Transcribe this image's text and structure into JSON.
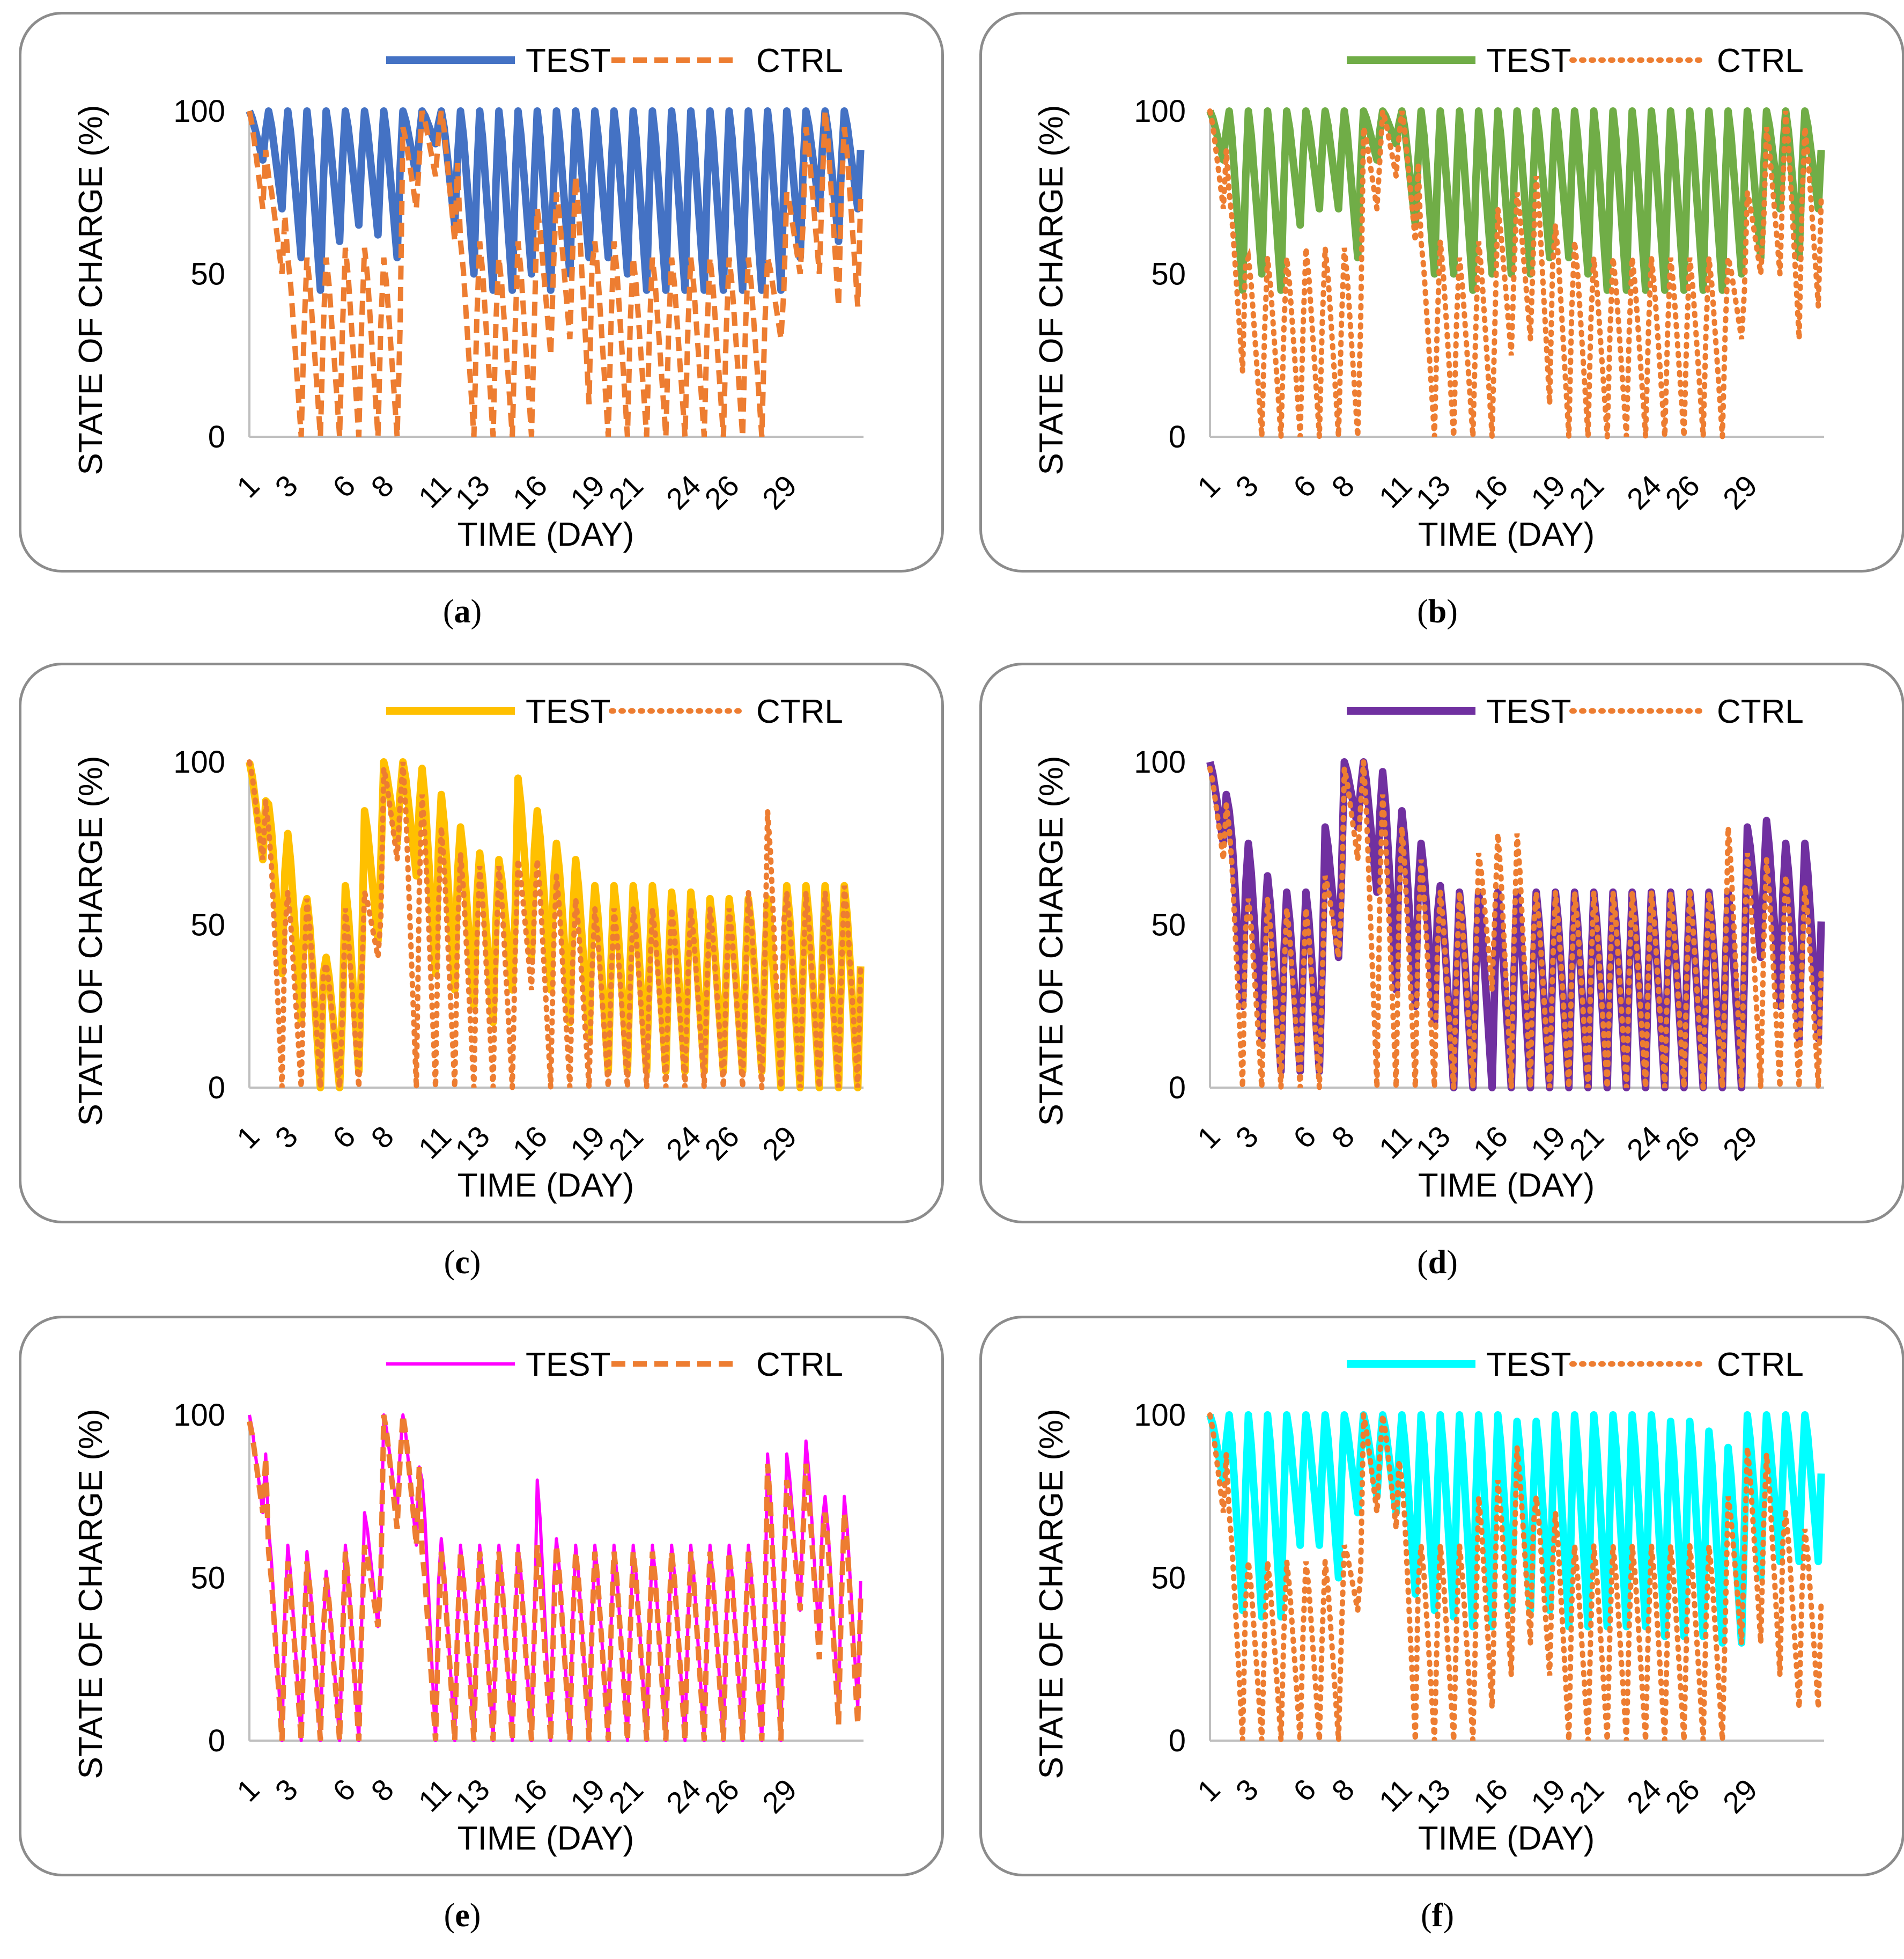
{
  "panels": [
    {
      "id": "a",
      "caption": "a",
      "test_color": "#4472C4",
      "ctrl_color": "#ED7D31",
      "ctrl_style": "dashed",
      "test_width": 14,
      "test_style": "solid"
    },
    {
      "id": "b",
      "caption": "b",
      "test_color": "#70AD47",
      "ctrl_color": "#ED7D31",
      "ctrl_style": "dotted",
      "test_width": 14,
      "test_style": "solid"
    },
    {
      "id": "c",
      "caption": "c",
      "test_color": "#FFC000",
      "ctrl_color": "#ED7D31",
      "ctrl_style": "dotted",
      "test_width": 14,
      "test_style": "solid"
    },
    {
      "id": "d",
      "caption": "d",
      "test_color": "#7030A0",
      "ctrl_color": "#ED7D31",
      "ctrl_style": "dotted",
      "test_width": 14,
      "test_style": "solid"
    },
    {
      "id": "e",
      "caption": "e",
      "test_color": "#FF00FF",
      "ctrl_color": "#ED7D31",
      "ctrl_style": "dashed",
      "test_width": 6,
      "test_style": "solid"
    },
    {
      "id": "f",
      "caption": "f",
      "test_color": "#00FFFF",
      "ctrl_color": "#ED7D31",
      "ctrl_style": "dotted",
      "test_width": 14,
      "test_style": "solid"
    }
  ],
  "chart_data": [
    {
      "panel": "a",
      "type": "line",
      "xlabel": "TIME (DAY)",
      "ylabel": "STATE OF CHARGE (%)",
      "ylim": [
        0,
        100
      ],
      "yticks": [
        0,
        50,
        100
      ],
      "xticks": [
        "1",
        "3",
        "6",
        "8",
        "11",
        "13",
        "16",
        "19",
        "21",
        "24",
        "26",
        "29"
      ],
      "series": [
        {
          "name": "TEST",
          "daily_max": [
            100,
            100,
            100,
            100,
            100,
            100,
            100,
            100,
            100,
            100,
            100,
            100,
            100,
            100,
            100,
            100,
            100,
            100,
            100,
            100,
            100,
            100,
            100,
            100,
            100,
            100,
            100,
            100,
            100,
            100,
            100,
            100
          ],
          "daily_min": [
            85,
            70,
            55,
            45,
            60,
            65,
            62,
            55,
            80,
            90,
            65,
            50,
            45,
            45,
            50,
            45,
            50,
            55,
            55,
            50,
            45,
            45,
            45,
            45,
            45,
            45,
            45,
            45,
            55,
            70,
            60,
            70
          ]
        },
        {
          "name": "CTRL",
          "daily_max": [
            100,
            80,
            55,
            55,
            55,
            58,
            58,
            55,
            95,
            100,
            100,
            60,
            60,
            55,
            60,
            70,
            75,
            80,
            60,
            60,
            55,
            55,
            55,
            55,
            55,
            55,
            55,
            55,
            75,
            95,
            100,
            95
          ],
          "daily_min": [
            70,
            50,
            0,
            0,
            0,
            0,
            0,
            0,
            70,
            80,
            60,
            0,
            0,
            0,
            0,
            25,
            30,
            10,
            0,
            0,
            0,
            0,
            0,
            0,
            0,
            0,
            0,
            30,
            50,
            50,
            40,
            40
          ]
        }
      ]
    },
    {
      "panel": "b",
      "type": "line",
      "xlabel": "TIME (DAY)",
      "ylabel": "STATE OF CHARGE (%)",
      "ylim": [
        0,
        100
      ],
      "yticks": [
        0,
        50,
        100
      ],
      "xticks": [
        "1",
        "3",
        "6",
        "8",
        "11",
        "13",
        "16",
        "19",
        "21",
        "24",
        "26",
        "29"
      ],
      "series": [
        {
          "name": "TEST",
          "daily_max": [
            100,
            100,
            100,
            100,
            100,
            100,
            100,
            100,
            100,
            100,
            100,
            100,
            100,
            100,
            100,
            100,
            100,
            100,
            100,
            100,
            100,
            100,
            100,
            100,
            100,
            100,
            100,
            100,
            100,
            100,
            100,
            100
          ],
          "daily_min": [
            85,
            45,
            50,
            45,
            65,
            70,
            70,
            55,
            85,
            90,
            65,
            50,
            50,
            45,
            50,
            50,
            50,
            55,
            55,
            50,
            45,
            45,
            45,
            45,
            45,
            45,
            45,
            50,
            55,
            70,
            55,
            70
          ]
        },
        {
          "name": "CTRL",
          "daily_max": [
            100,
            75,
            55,
            55,
            55,
            58,
            58,
            58,
            95,
            100,
            100,
            60,
            60,
            55,
            60,
            70,
            75,
            80,
            65,
            60,
            55,
            55,
            55,
            55,
            55,
            55,
            55,
            55,
            75,
            95,
            100,
            95
          ],
          "daily_min": [
            70,
            20,
            0,
            0,
            0,
            0,
            0,
            0,
            70,
            80,
            60,
            0,
            0,
            0,
            0,
            25,
            30,
            10,
            0,
            0,
            0,
            0,
            0,
            0,
            0,
            0,
            0,
            30,
            50,
            50,
            30,
            40
          ]
        }
      ]
    },
    {
      "panel": "c",
      "type": "line",
      "xlabel": "TIME (DAY)",
      "ylabel": "STATE OF CHARGE (%)",
      "ylim": [
        0,
        100
      ],
      "yticks": [
        0,
        50,
        100
      ],
      "xticks": [
        "1",
        "3",
        "6",
        "8",
        "11",
        "13",
        "16",
        "19",
        "21",
        "24",
        "26",
        "29"
      ],
      "series": [
        {
          "name": "TEST",
          "daily_max": [
            100,
            87,
            78,
            58,
            40,
            62,
            85,
            100,
            100,
            98,
            90,
            80,
            72,
            70,
            95,
            85,
            75,
            70,
            62,
            62,
            62,
            62,
            60,
            60,
            58,
            58,
            58,
            58,
            62,
            62,
            62,
            62
          ],
          "daily_min": [
            70,
            35,
            20,
            0,
            0,
            5,
            45,
            75,
            65,
            35,
            30,
            25,
            20,
            30,
            40,
            30,
            20,
            15,
            5,
            5,
            5,
            5,
            5,
            5,
            5,
            5,
            5,
            0,
            0,
            0,
            0,
            0
          ]
        },
        {
          "name": "CTRL",
          "daily_max": [
            100,
            80,
            60,
            58,
            38,
            55,
            60,
            98,
            100,
            90,
            80,
            72,
            68,
            68,
            70,
            70,
            65,
            58,
            55,
            55,
            55,
            55,
            55,
            55,
            55,
            55,
            60,
            85,
            60,
            60,
            60,
            62
          ],
          "daily_min": [
            70,
            0,
            0,
            0,
            0,
            0,
            40,
            70,
            0,
            0,
            0,
            0,
            0,
            0,
            30,
            0,
            0,
            0,
            0,
            0,
            0,
            0,
            0,
            0,
            0,
            0,
            0,
            0,
            0,
            0,
            0,
            0
          ]
        }
      ]
    },
    {
      "panel": "d",
      "type": "line",
      "xlabel": "TIME (DAY)",
      "ylabel": "STATE OF CHARGE (%)",
      "ylim": [
        0,
        100
      ],
      "yticks": [
        0,
        50,
        100
      ],
      "xticks": [
        "1",
        "3",
        "6",
        "8",
        "11",
        "13",
        "16",
        "19",
        "21",
        "24",
        "26",
        "29"
      ],
      "series": [
        {
          "name": "TEST",
          "daily_max": [
            100,
            85,
            75,
            65,
            60,
            60,
            80,
            100,
            100,
            97,
            85,
            75,
            62,
            60,
            60,
            60,
            60,
            60,
            60,
            60,
            60,
            60,
            60,
            60,
            60,
            60,
            60,
            60,
            80,
            82,
            75,
            75
          ],
          "daily_min": [
            75,
            25,
            15,
            5,
            5,
            5,
            40,
            80,
            60,
            30,
            25,
            20,
            0,
            0,
            0,
            0,
            0,
            0,
            0,
            0,
            0,
            0,
            0,
            0,
            0,
            0,
            0,
            0,
            40,
            25,
            15,
            15
          ]
        },
        {
          "name": "CTRL",
          "daily_max": [
            98,
            80,
            58,
            58,
            55,
            55,
            65,
            98,
            100,
            90,
            80,
            70,
            60,
            60,
            72,
            78,
            78,
            60,
            60,
            60,
            60,
            60,
            60,
            60,
            60,
            60,
            60,
            80,
            72,
            70,
            65,
            62
          ],
          "daily_min": [
            70,
            0,
            0,
            0,
            0,
            0,
            40,
            70,
            0,
            0,
            0,
            0,
            0,
            0,
            30,
            0,
            0,
            0,
            0,
            0,
            0,
            0,
            0,
            0,
            0,
            0,
            0,
            0,
            0,
            0,
            0,
            0
          ]
        }
      ]
    },
    {
      "panel": "e",
      "type": "line",
      "xlabel": "TIME (DAY)",
      "ylabel": "STATE OF CHARGE (%)",
      "ylim": [
        0,
        100
      ],
      "yticks": [
        0,
        50,
        100
      ],
      "xticks": [
        "1",
        "3",
        "6",
        "8",
        "11",
        "13",
        "16",
        "19",
        "21",
        "24",
        "26",
        "29"
      ],
      "series": [
        {
          "name": "TEST",
          "daily_max": [
            100,
            65,
            60,
            58,
            52,
            60,
            70,
            100,
            100,
            80,
            62,
            60,
            60,
            60,
            60,
            80,
            62,
            60,
            60,
            60,
            60,
            60,
            60,
            60,
            60,
            60,
            60,
            88,
            88,
            92,
            75,
            75
          ],
          "daily_min": [
            70,
            0,
            0,
            0,
            0,
            0,
            35,
            70,
            60,
            0,
            0,
            0,
            0,
            0,
            0,
            0,
            0,
            0,
            0,
            0,
            0,
            0,
            0,
            0,
            0,
            0,
            0,
            0,
            40,
            30,
            10,
            10
          ]
        },
        {
          "name": "CTRL",
          "daily_max": [
            98,
            58,
            55,
            55,
            50,
            58,
            60,
            100,
            100,
            58,
            58,
            58,
            58,
            58,
            58,
            60,
            60,
            58,
            58,
            58,
            58,
            58,
            58,
            58,
            58,
            58,
            58,
            85,
            80,
            85,
            70,
            70
          ],
          "daily_min": [
            70,
            0,
            0,
            0,
            0,
            0,
            35,
            65,
            60,
            0,
            0,
            0,
            0,
            0,
            0,
            0,
            0,
            0,
            0,
            0,
            0,
            0,
            0,
            0,
            0,
            0,
            0,
            0,
            40,
            25,
            5,
            5
          ]
        }
      ]
    },
    {
      "panel": "f",
      "type": "line",
      "xlabel": "TIME (DAY)",
      "ylabel": "STATE OF CHARGE (%)",
      "ylim": [
        0,
        100
      ],
      "yticks": [
        0,
        50,
        100
      ],
      "xticks": [
        "1",
        "3",
        "6",
        "8",
        "11",
        "13",
        "16",
        "19",
        "21",
        "24",
        "26",
        "29"
      ],
      "series": [
        {
          "name": "TEST",
          "daily_max": [
            100,
            100,
            100,
            100,
            100,
            100,
            100,
            100,
            100,
            100,
            100,
            100,
            100,
            100,
            100,
            100,
            98,
            98,
            100,
            100,
            100,
            100,
            100,
            100,
            98,
            98,
            95,
            90,
            100,
            100,
            100,
            100
          ],
          "daily_min": [
            80,
            40,
            38,
            38,
            60,
            60,
            50,
            70,
            75,
            70,
            45,
            40,
            38,
            35,
            35,
            40,
            40,
            40,
            35,
            35,
            35,
            35,
            35,
            32,
            32,
            32,
            30,
            30,
            50,
            55,
            55,
            55
          ]
        },
        {
          "name": "CTRL",
          "daily_max": [
            100,
            70,
            55,
            55,
            55,
            55,
            55,
            60,
            100,
            100,
            80,
            60,
            60,
            60,
            75,
            80,
            90,
            75,
            70,
            60,
            60,
            60,
            60,
            60,
            60,
            60,
            60,
            75,
            90,
            88,
            70,
            65
          ],
          "daily_min": [
            70,
            0,
            0,
            0,
            0,
            0,
            0,
            40,
            70,
            65,
            0,
            0,
            0,
            0,
            10,
            20,
            30,
            20,
            0,
            0,
            0,
            0,
            0,
            0,
            0,
            0,
            0,
            30,
            30,
            20,
            10,
            10
          ]
        }
      ]
    }
  ]
}
